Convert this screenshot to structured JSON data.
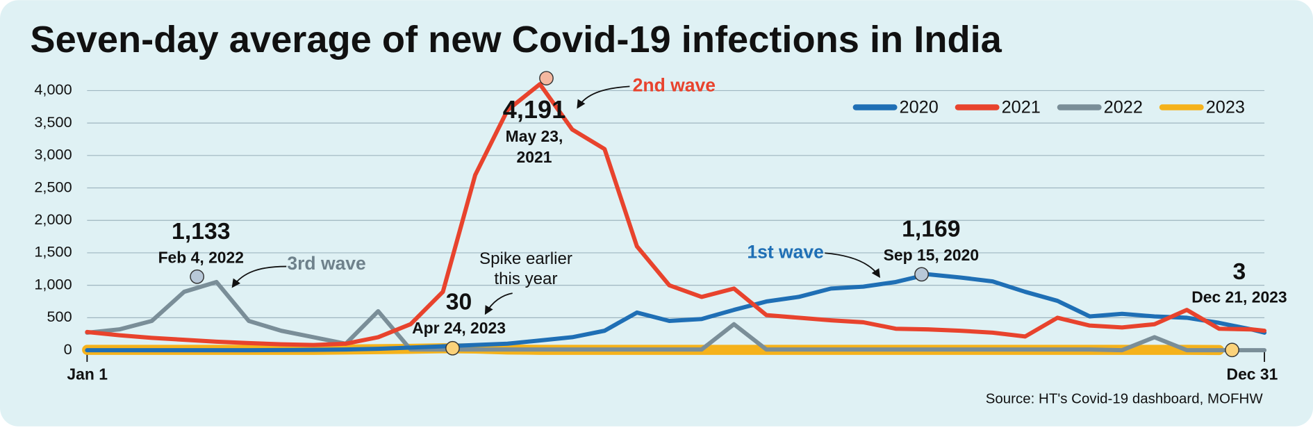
{
  "chart_data": {
    "type": "line",
    "title": "Seven-day average of new Covid-19 infections in India",
    "source": "Source: HT's Covid-19 dashboard, MOFHW",
    "x": [
      1,
      11,
      21,
      31,
      41,
      51,
      61,
      71,
      81,
      91,
      101,
      111,
      121,
      131,
      141,
      151,
      161,
      171,
      181,
      191,
      201,
      211,
      221,
      231,
      241,
      251,
      261,
      271,
      281,
      291,
      301,
      311,
      321,
      331,
      341,
      351,
      361,
      365
    ],
    "xlim": [
      1,
      365
    ],
    "xticks": [
      {
        "value": 1,
        "label": "Jan 1"
      },
      {
        "value": 365,
        "label": "Dec 31"
      }
    ],
    "ylim": [
      0,
      4000
    ],
    "yticks": [
      0,
      500,
      {
        "value": 1000,
        "label": "1,000"
      },
      {
        "value": 1500,
        "label": "1,500"
      },
      {
        "value": 2000,
        "label": "2,000"
      },
      {
        "value": 2500,
        "label": "2,500"
      },
      {
        "value": 3000,
        "label": "3,000"
      },
      {
        "value": 3500,
        "label": "3,500"
      },
      {
        "value": 4000,
        "label": "4,000"
      }
    ],
    "grid": true,
    "legend": "top-right",
    "series": [
      {
        "name": "2020",
        "color": "#1f6fb5",
        "values": [
          0,
          0,
          0,
          0,
          0,
          0,
          2,
          5,
          10,
          20,
          40,
          60,
          80,
          100,
          150,
          200,
          300,
          580,
          450,
          480,
          620,
          750,
          820,
          950,
          980,
          1050,
          1169,
          1120,
          1060,
          900,
          760,
          520,
          560,
          520,
          500,
          420,
          320,
          270
        ]
      },
      {
        "name": "2021",
        "color": "#e8432d",
        "values": [
          280,
          230,
          190,
          160,
          130,
          110,
          90,
          80,
          100,
          200,
          400,
          900,
          2700,
          3700,
          4100,
          3400,
          3100,
          1600,
          1000,
          820,
          950,
          540,
          500,
          460,
          430,
          330,
          320,
          300,
          270,
          210,
          500,
          380,
          350,
          400,
          620,
          330,
          320,
          300
        ]
      },
      {
        "name": "2022",
        "color": "#7a8e98",
        "values": [
          270,
          320,
          450,
          900,
          1050,
          450,
          300,
          200,
          100,
          600,
          10,
          10,
          10,
          10,
          10,
          10,
          10,
          10,
          10,
          10,
          400,
          10,
          10,
          10,
          10,
          10,
          10,
          10,
          10,
          10,
          10,
          10,
          0,
          200,
          0,
          0,
          0,
          0
        ]
      },
      {
        "name": "2023",
        "color": "#f5b21b",
        "values": [
          5,
          5,
          5,
          5,
          5,
          5,
          5,
          5,
          10,
          15,
          20,
          30,
          25,
          10,
          5,
          5,
          5,
          5,
          5,
          5,
          5,
          5,
          5,
          5,
          5,
          5,
          5,
          5,
          5,
          5,
          5,
          5,
          5,
          5,
          5,
          3,
          null,
          null
        ]
      }
    ],
    "annotations": [
      {
        "label": "1,133",
        "date": "Feb 4, 2022",
        "x": 35,
        "y": 1133,
        "series": 2
      },
      {
        "label": "4,191",
        "date": "May 23, 2021",
        "x": 143,
        "y": 4191,
        "series": 1
      },
      {
        "label": "1,169",
        "date": "Sep 15, 2020",
        "x": 259,
        "y": 1169,
        "series": 0
      },
      {
        "label": "30",
        "date": "Apr 24, 2023",
        "x": 114,
        "y": 30,
        "series": 3
      },
      {
        "label": "3",
        "date": "Dec 21, 2023",
        "x": 355,
        "y": 3,
        "series": 3
      }
    ],
    "notes": [
      "3rd wave",
      "2nd wave",
      "1st wave",
      "Spike earlier this year"
    ]
  }
}
